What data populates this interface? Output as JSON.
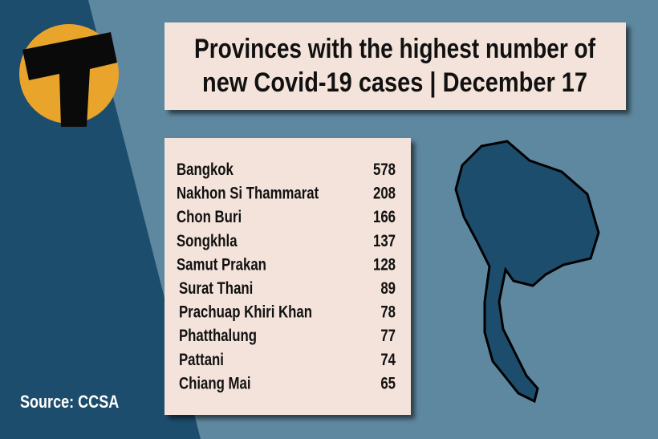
{
  "title_lines": [
    "Provinces with the highest number of",
    "new Covid-19 cases | December 17"
  ],
  "table": {
    "rows": [
      [
        "Bangkok",
        578
      ],
      [
        "Nakhon Si Thammarat",
        208
      ],
      [
        "Chon Buri",
        166
      ],
      [
        "Songkhla",
        137
      ],
      [
        "Samut Prakan",
        128
      ],
      [
        "Surat Thani",
        89
      ],
      [
        "Prachuap Khiri Khan",
        78
      ],
      [
        "Phatthalung",
        77
      ],
      [
        "Pattani",
        74
      ],
      [
        "Chiang Mai",
        65
      ]
    ]
  },
  "source": "Source: CCSA"
}
